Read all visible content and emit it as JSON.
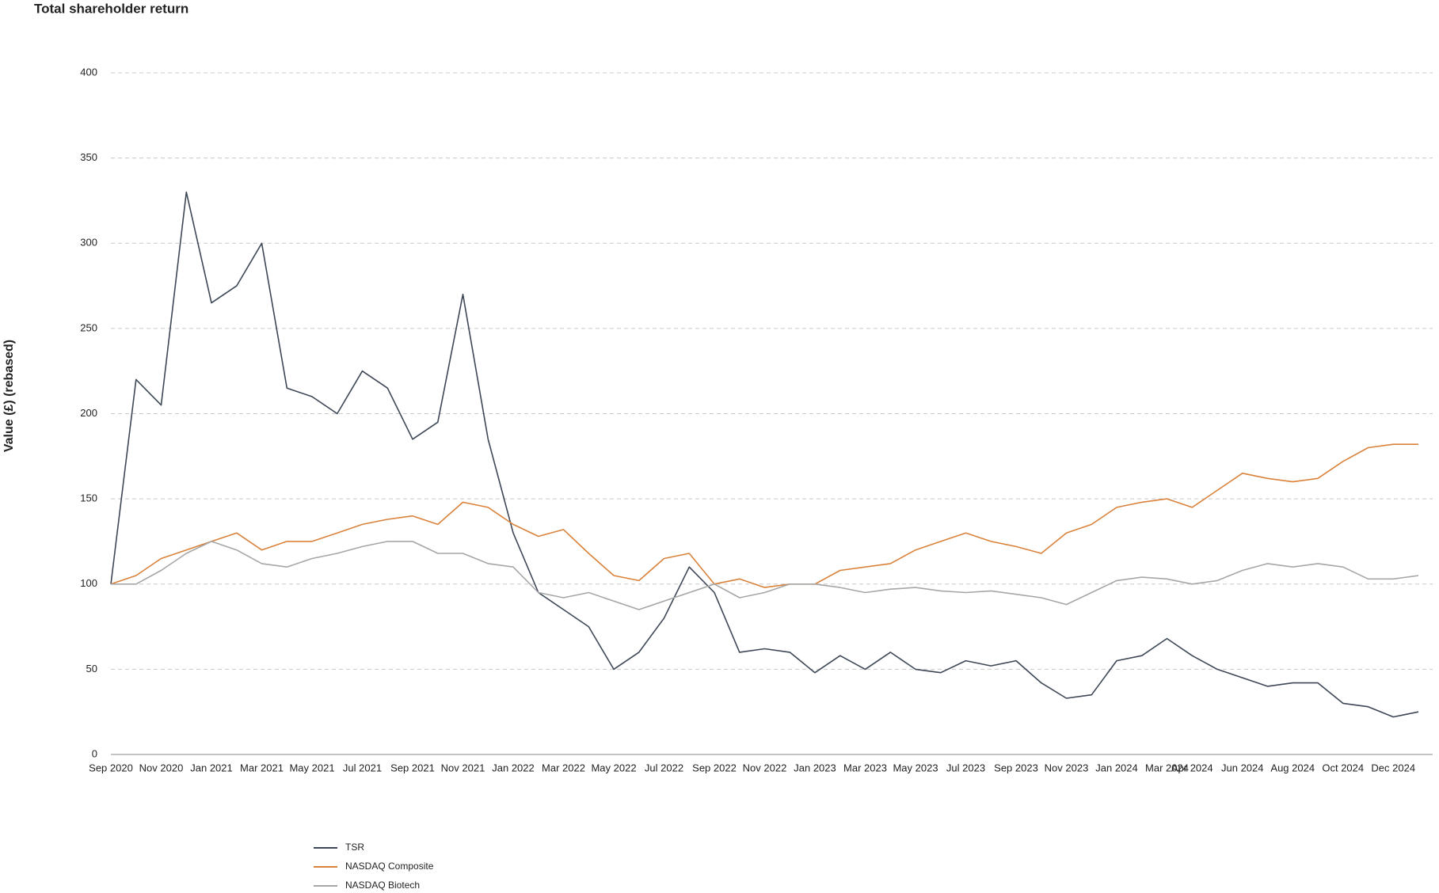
{
  "chart_data": {
    "type": "line",
    "title": "Total shareholder return",
    "y_label": "Value (£) (rebased)",
    "categories": [
      "Sep 2020",
      null,
      "Nov 2020",
      null,
      "Jan 2021",
      null,
      "Mar 2021",
      null,
      "May 2021",
      null,
      "Jul 2021",
      null,
      "Sep 2021",
      null,
      "Nov 2021",
      null,
      "Jan 2022",
      null,
      "Mar 2022",
      null,
      "May 2022",
      null,
      "Jul 2022",
      null,
      "Sep 2022",
      null,
      "Nov 2022",
      null,
      "Jan 2023",
      null,
      "Mar 2023",
      null,
      "May 2023",
      null,
      "Jul 2023",
      null,
      "Sep 2023",
      null,
      "Nov 2023",
      null,
      "Jan 2024",
      null,
      "Mar 2024",
      "Apr 2024",
      null,
      "Jun 2024",
      null,
      "Aug 2024",
      null,
      "Oct 2024",
      null,
      "Dec 2024",
      null
    ],
    "series": [
      {
        "name": "TSR",
        "color": "#3d4756",
        "values": [
          100,
          220,
          205,
          330,
          265,
          275,
          300,
          215,
          210,
          200,
          225,
          215,
          185,
          195,
          270,
          185,
          130,
          95,
          85,
          75,
          50,
          60,
          80,
          110,
          95,
          60,
          62,
          60,
          48,
          58,
          50,
          60,
          50,
          48,
          55,
          52,
          55,
          42,
          33,
          35,
          55,
          58,
          68,
          58,
          50,
          45,
          40,
          42,
          42,
          30,
          28,
          22,
          25
        ]
      },
      {
        "name": "NASDAQ Composite",
        "color": "#d9823b",
        "values": [
          100,
          105,
          115,
          120,
          125,
          130,
          120,
          125,
          125,
          130,
          135,
          138,
          140,
          135,
          148,
          145,
          135,
          128,
          132,
          118,
          105,
          102,
          115,
          118,
          100,
          103,
          98,
          100,
          100,
          108,
          110,
          112,
          120,
          125,
          130,
          125,
          122,
          118,
          130,
          135,
          145,
          148,
          150,
          145,
          155,
          165,
          162,
          160,
          162,
          172,
          180,
          182,
          182
        ]
      },
      {
        "name": "NASDAQ Biotech",
        "color": "#a6a6a6",
        "values": [
          100,
          100,
          108,
          118,
          125,
          120,
          112,
          110,
          115,
          118,
          122,
          125,
          125,
          118,
          118,
          112,
          110,
          95,
          92,
          95,
          90,
          85,
          90,
          95,
          100,
          92,
          95,
          100,
          100,
          98,
          95,
          97,
          98,
          96,
          95,
          96,
          94,
          92,
          88,
          95,
          102,
          104,
          103,
          100,
          102,
          108,
          112,
          110,
          112,
          110,
          103,
          103,
          105
        ]
      }
    ],
    "ylim": [
      0,
      400
    ],
    "yticks": [
      0,
      50,
      100,
      150,
      200,
      250,
      300,
      350,
      400
    ],
    "grid": true
  }
}
